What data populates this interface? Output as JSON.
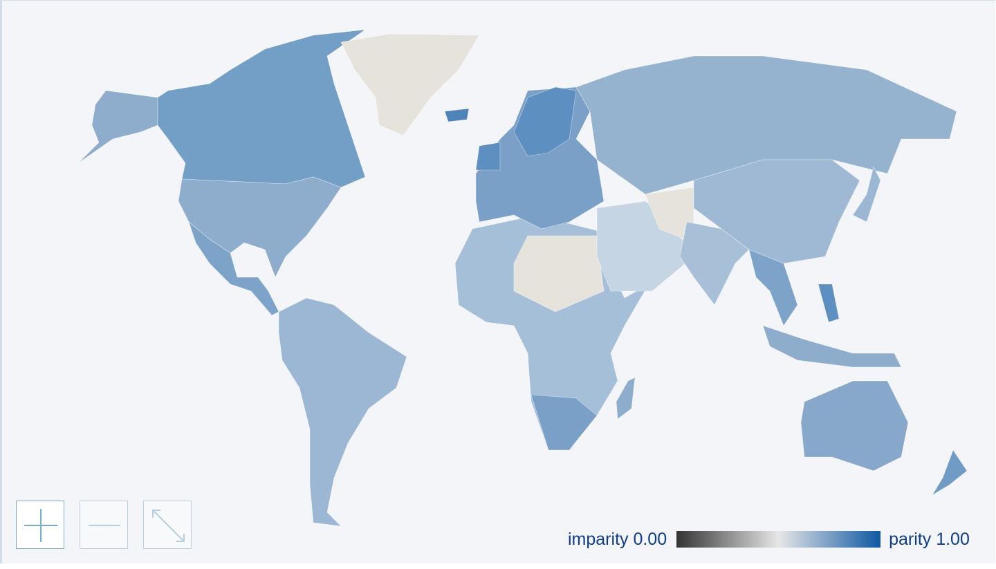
{
  "legend": {
    "min_label": "imparity 0.00",
    "max_label": "parity 1.00",
    "gradient": [
      "#333333",
      "#e6e6e6",
      "#0f58a3"
    ],
    "range": [
      0,
      1
    ]
  },
  "controls": [
    {
      "name": "zoom-in",
      "icon": "plus-icon"
    },
    {
      "name": "zoom-out",
      "icon": "minus-icon"
    },
    {
      "name": "reset-zoom",
      "icon": "expand-arrows-icon"
    }
  ],
  "colors": {
    "background": "#f3f5f8",
    "no_data": "#e5e3dc",
    "high_parity": "#6f9bc4",
    "mid_parity": "#95b3cf",
    "low_parity": "#c7d6e4"
  }
}
